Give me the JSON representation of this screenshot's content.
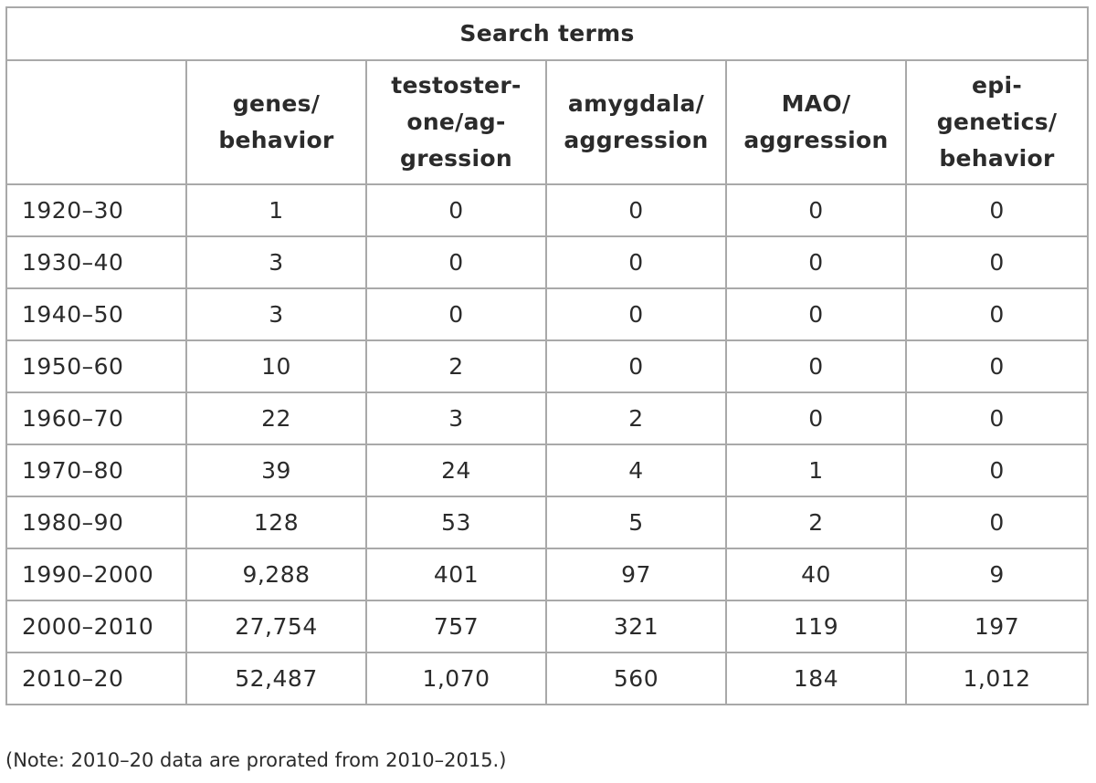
{
  "table": {
    "title": "Search terms",
    "corner": "",
    "columns": [
      "genes/\nbehavior",
      "testoster-\none/ag-\ngression",
      "amygdala/\naggression",
      "MAO/\naggression",
      "epi-\ngenetics/\nbehavior"
    ],
    "rows": [
      {
        "period": "1920–30",
        "values": [
          "1",
          "0",
          "0",
          "0",
          "0"
        ]
      },
      {
        "period": "1930–40",
        "values": [
          "3",
          "0",
          "0",
          "0",
          "0"
        ]
      },
      {
        "period": "1940–50",
        "values": [
          "3",
          "0",
          "0",
          "0",
          "0"
        ]
      },
      {
        "period": "1950–60",
        "values": [
          "10",
          "2",
          "0",
          "0",
          "0"
        ]
      },
      {
        "period": "1960–70",
        "values": [
          "22",
          "3",
          "2",
          "0",
          "0"
        ]
      },
      {
        "period": "1970–80",
        "values": [
          "39",
          "24",
          "4",
          "1",
          "0"
        ]
      },
      {
        "period": "1980–90",
        "values": [
          "128",
          "53",
          "5",
          "2",
          "0"
        ]
      },
      {
        "period": "1990–2000",
        "values": [
          "9,288",
          "401",
          "97",
          "40",
          "9"
        ]
      },
      {
        "period": "2000–2010",
        "values": [
          "27,754",
          "757",
          "321",
          "119",
          "197"
        ]
      },
      {
        "period": "2010–20",
        "values": [
          "52,487",
          "1,070",
          "560",
          "184",
          "1,012"
        ]
      }
    ]
  },
  "note": "(Note: 2010–20 data are prorated from 2010–2015.)"
}
